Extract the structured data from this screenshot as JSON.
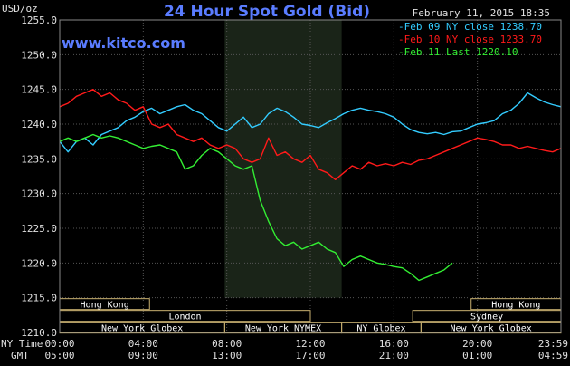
{
  "chart_data": {
    "type": "line",
    "title": "24 Hour Spot Gold (Bid)",
    "unit_label": "USD/oz",
    "timestamp": "February 11, 2015 18:35",
    "watermark": "www.kitco.com",
    "ylim": [
      1210,
      1255
    ],
    "yticks": [
      1210,
      1215,
      1220,
      1225,
      1230,
      1235,
      1240,
      1245,
      1250,
      1255
    ],
    "ytick_labels": [
      "1210.0",
      "1215.0",
      "1220.0",
      "1225.0",
      "1230.0",
      "1235.0",
      "1240.0",
      "1245.0",
      "1250.0",
      "1255.0"
    ],
    "x_unit": "hours since 00:00 NY time",
    "xlim": [
      0,
      24
    ],
    "xticks": [
      0,
      4,
      8,
      12,
      16,
      20,
      24
    ],
    "row_labels": {
      "ny": "NY Time",
      "gmt": "GMT"
    },
    "ny_time_labels": [
      "00:00",
      "04:00",
      "08:00",
      "12:00",
      "16:00",
      "20:00",
      "23:59"
    ],
    "gmt_time_labels": [
      "05:00",
      "09:00",
      "13:00",
      "17:00",
      "21:00",
      "01:00",
      "04:59"
    ],
    "sessions": [
      {
        "name": "Hong Kong",
        "start": 0,
        "end": 4.3,
        "row": 0
      },
      {
        "name": "Hong Kong",
        "start": 19.7,
        "end": 24,
        "row": 0
      },
      {
        "name": "London",
        "start": 0,
        "end": 12,
        "row": 1
      },
      {
        "name": "Sydney",
        "start": 16.9,
        "end": 24,
        "row": 1
      },
      {
        "name": "New York Globex",
        "start": 0,
        "end": 7.9,
        "row": 2
      },
      {
        "name": "New York NYMEX",
        "start": 7.9,
        "end": 13.5,
        "row": 2
      },
      {
        "name": "NY Globex",
        "start": 13.5,
        "end": 17.3,
        "row": 2
      },
      {
        "name": "New York Globex",
        "start": 17.3,
        "end": 24,
        "row": 2
      }
    ],
    "nymex_shade": [
      7.9,
      13.5
    ],
    "series": [
      {
        "name": "Feb 09 NY close 1238.70",
        "color": "#33ccff",
        "x": [
          0,
          0.4,
          0.8,
          1.2,
          1.6,
          2,
          2.4,
          2.8,
          3.2,
          3.6,
          4,
          4.4,
          4.8,
          5.2,
          5.6,
          6,
          6.4,
          6.8,
          7.2,
          7.6,
          8,
          8.4,
          8.8,
          9.2,
          9.6,
          10,
          10.4,
          10.8,
          11.2,
          11.6,
          12,
          12.4,
          12.8,
          13.2,
          13.6,
          14,
          14.4,
          14.8,
          15.2,
          15.6,
          16,
          16.4,
          16.8,
          17.2,
          17.6,
          18,
          18.4,
          18.8,
          19.2,
          19.6,
          20,
          20.4,
          20.8,
          21.2,
          21.6,
          22,
          22.4,
          22.8,
          23.2,
          23.6,
          24
        ],
        "y": [
          1237.5,
          1236.0,
          1237.5,
          1238.0,
          1237.0,
          1238.5,
          1239.0,
          1239.5,
          1240.5,
          1241.0,
          1241.8,
          1242.3,
          1241.5,
          1242.0,
          1242.5,
          1242.8,
          1242.0,
          1241.5,
          1240.5,
          1239.5,
          1239.0,
          1240.0,
          1241.0,
          1239.5,
          1240.0,
          1241.5,
          1242.3,
          1241.8,
          1241.0,
          1240.0,
          1239.8,
          1239.5,
          1240.2,
          1240.8,
          1241.5,
          1242.0,
          1242.3,
          1242.0,
          1241.8,
          1241.5,
          1241.0,
          1240.0,
          1239.2,
          1238.8,
          1238.6,
          1238.8,
          1238.5,
          1238.9,
          1239.0,
          1239.5,
          1240.0,
          1240.2,
          1240.5,
          1241.5,
          1242.0,
          1243.0,
          1244.5,
          1243.8,
          1243.2,
          1242.8,
          1242.5
        ]
      },
      {
        "name": "Feb 10 NY close 1233.70",
        "color": "#ff1a1a",
        "x": [
          0,
          0.4,
          0.8,
          1.2,
          1.6,
          2,
          2.4,
          2.8,
          3.2,
          3.6,
          4,
          4.4,
          4.8,
          5.2,
          5.6,
          6,
          6.4,
          6.8,
          7.2,
          7.6,
          8,
          8.4,
          8.8,
          9.2,
          9.6,
          10,
          10.4,
          10.8,
          11.2,
          11.6,
          12,
          12.4,
          12.8,
          13.2,
          13.6,
          14,
          14.4,
          14.8,
          15.2,
          15.6,
          16,
          16.4,
          16.8,
          17.2,
          17.6,
          18,
          18.4,
          18.8,
          19.2,
          19.6,
          20,
          20.4,
          20.8,
          21.2,
          21.6,
          22,
          22.4,
          22.8,
          23.2,
          23.6,
          24
        ],
        "y": [
          1242.5,
          1243.0,
          1244.0,
          1244.5,
          1245.0,
          1244.0,
          1244.5,
          1243.5,
          1243.0,
          1242.0,
          1242.5,
          1240.0,
          1239.5,
          1240.0,
          1238.5,
          1238.0,
          1237.5,
          1238.0,
          1237.0,
          1236.5,
          1237.0,
          1236.5,
          1235.0,
          1234.5,
          1235.0,
          1238.0,
          1235.5,
          1236.0,
          1235.0,
          1234.5,
          1235.5,
          1233.5,
          1233.0,
          1232.0,
          1233.0,
          1234.0,
          1233.5,
          1234.5,
          1234.0,
          1234.3,
          1234.0,
          1234.5,
          1234.2,
          1234.8,
          1235.0,
          1235.5,
          1236.0,
          1236.5,
          1237.0,
          1237.5,
          1238.0,
          1237.8,
          1237.5,
          1237.0,
          1237.0,
          1236.5,
          1236.8,
          1236.5,
          1236.2,
          1236.0,
          1236.5
        ]
      },
      {
        "name": "Feb 11 Last 1220.10",
        "color": "#33ee33",
        "x": [
          0,
          0.4,
          0.8,
          1.2,
          1.6,
          2,
          2.4,
          2.8,
          3.2,
          3.6,
          4,
          4.4,
          4.8,
          5.2,
          5.6,
          6,
          6.4,
          6.8,
          7.2,
          7.6,
          8,
          8.4,
          8.8,
          9.2,
          9.6,
          10,
          10.4,
          10.8,
          11.2,
          11.6,
          12,
          12.4,
          12.8,
          13.2,
          13.6,
          14,
          14.4,
          14.8,
          15.2,
          15.6,
          16,
          16.4,
          16.8,
          17.2,
          17.6,
          18,
          18.4,
          18.8
        ],
        "y": [
          1237.5,
          1238.0,
          1237.5,
          1238.0,
          1238.5,
          1238.0,
          1238.3,
          1238.0,
          1237.5,
          1237.0,
          1236.5,
          1236.8,
          1237.0,
          1236.5,
          1236.0,
          1233.5,
          1234.0,
          1235.5,
          1236.5,
          1236.0,
          1235.0,
          1234.0,
          1233.5,
          1234.0,
          1229.0,
          1226.0,
          1223.5,
          1222.5,
          1223.0,
          1222.0,
          1222.5,
          1223.0,
          1222.0,
          1221.5,
          1219.5,
          1220.5,
          1221.0,
          1220.5,
          1220.0,
          1219.8,
          1219.5,
          1219.3,
          1218.5,
          1217.5,
          1218.0,
          1218.5,
          1219.0,
          1220.0
        ]
      }
    ]
  }
}
